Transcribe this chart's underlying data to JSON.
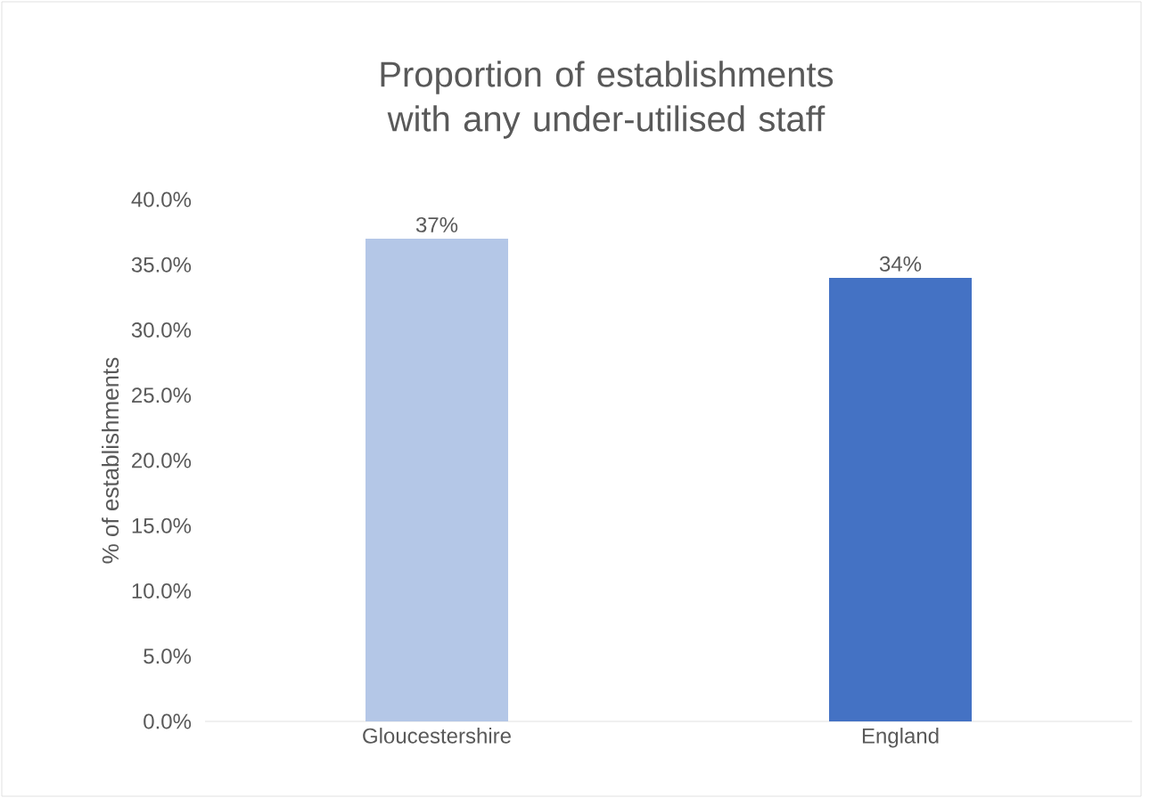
{
  "chart_data": {
    "type": "bar",
    "title": "Proportion of establishments with any under-utilised staff",
    "ylabel": "% of establishments",
    "categories": [
      "Gloucestershire",
      "England"
    ],
    "values": [
      37,
      34
    ],
    "value_labels": [
      "37%",
      "34%"
    ],
    "colors": [
      "#b4c7e7",
      "#4472c4"
    ],
    "ylim": [
      0,
      40
    ],
    "yticks": [
      {
        "value": 0,
        "label": "0.0%"
      },
      {
        "value": 5,
        "label": "5.0%"
      },
      {
        "value": 10,
        "label": "10.0%"
      },
      {
        "value": 15,
        "label": "15.0%"
      },
      {
        "value": 20,
        "label": "20.0%"
      },
      {
        "value": 25,
        "label": "25.0%"
      },
      {
        "value": 30,
        "label": "30.0%"
      },
      {
        "value": 35,
        "label": "35.0%"
      },
      {
        "value": 40,
        "label": "40.0%"
      }
    ]
  }
}
